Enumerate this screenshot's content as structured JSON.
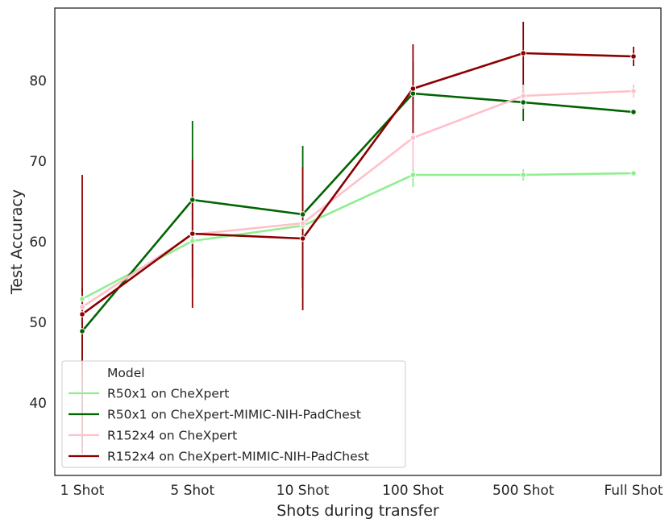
{
  "chart_data": {
    "type": "line",
    "xlabel": "Shots during transfer",
    "ylabel": "Test Accuracy",
    "categories": [
      "1 Shot",
      "5 Shot",
      "10 Shot",
      "100 Shot",
      "500 Shot",
      "Full Shot"
    ],
    "yticks": [
      40,
      50,
      60,
      70,
      80
    ],
    "ylim": [
      31,
      89
    ],
    "grid": false,
    "legend": {
      "title": "Model",
      "placement": "lower-left"
    },
    "series": [
      {
        "name": "R50x1 on CheXpert",
        "color": "#90ee90",
        "values": [
          52.9,
          60.1,
          62.0,
          68.3,
          68.3,
          68.5
        ],
        "err_low": [
          51.6,
          58.8,
          61.0,
          66.8,
          67.6,
          68.2
        ],
        "err_high": [
          54.2,
          61.4,
          63.0,
          69.8,
          69.0,
          68.8
        ]
      },
      {
        "name": "R50x1 on CheXpert-MIMIC-NIH-PadChest",
        "color": "#006400",
        "values": [
          48.9,
          65.2,
          63.4,
          78.4,
          77.3,
          76.1
        ],
        "err_low": [
          43.5,
          55.4,
          54.3,
          74.5,
          75.0,
          75.8
        ],
        "err_high": [
          54.3,
          75.0,
          71.9,
          82.3,
          79.6,
          76.4
        ]
      },
      {
        "name": "R152x4 on CheXpert",
        "color": "#ffc0cb",
        "values": [
          51.9,
          60.9,
          62.3,
          72.9,
          78.1,
          78.7
        ],
        "err_low": [
          50.0,
          59.0,
          60.9,
          69.0,
          76.5,
          77.9
        ],
        "err_high": [
          53.8,
          62.8,
          63.7,
          76.8,
          79.7,
          79.5
        ]
      },
      {
        "name": "R152x4 on CheXpert-MIMIC-NIH-PadChest",
        "color": "#8b0000",
        "values": [
          51.0,
          61.0,
          60.4,
          79.0,
          83.4,
          83.0
        ],
        "err_low": [
          33.7,
          51.8,
          51.5,
          73.5,
          79.5,
          81.8
        ],
        "err_high": [
          68.3,
          70.2,
          69.3,
          84.5,
          87.3,
          84.2
        ]
      }
    ]
  }
}
